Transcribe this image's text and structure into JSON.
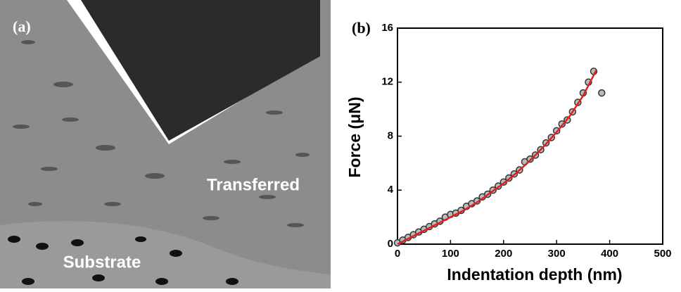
{
  "image": {
    "panel_label": "(a)",
    "top_label": "Transferred",
    "bottom_label": "Substrate"
  },
  "chart_data": {
    "type": "scatter",
    "panel_label": "(b)",
    "x_label": "Indentation depth (nm)",
    "y_label": "Force (μN)",
    "xlim": [
      0,
      500
    ],
    "xticks": [
      0,
      100,
      200,
      300,
      400,
      500
    ],
    "ylim": [
      0,
      16
    ],
    "yticks": [
      0,
      4,
      8,
      12,
      16
    ],
    "series": [
      {
        "style": "marker",
        "color": "#333333",
        "x": [
          0,
          10,
          20,
          30,
          40,
          50,
          60,
          70,
          80,
          90,
          100,
          110,
          120,
          130,
          140,
          150,
          160,
          170,
          180,
          190,
          200,
          210,
          220,
          230,
          240,
          250,
          260,
          270,
          280,
          290,
          300,
          310,
          320,
          330,
          340,
          350,
          360,
          370,
          385
        ],
        "values": [
          0.1,
          0.3,
          0.5,
          0.7,
          0.9,
          1.1,
          1.3,
          1.5,
          1.7,
          2.0,
          2.2,
          2.3,
          2.5,
          2.8,
          3.0,
          3.2,
          3.5,
          3.7,
          4.0,
          4.3,
          4.6,
          4.9,
          5.2,
          5.5,
          6.1,
          6.3,
          6.6,
          7.0,
          7.5,
          7.9,
          8.4,
          8.9,
          9.2,
          9.8,
          10.5,
          11.2,
          12.0,
          12.8,
          11.2
        ]
      },
      {
        "style": "line",
        "color": "#e02020",
        "x": [
          0,
          25,
          50,
          75,
          100,
          125,
          150,
          175,
          200,
          225,
          250,
          275,
          300,
          325,
          350,
          375
        ],
        "values": [
          0,
          0.5,
          1.0,
          1.5,
          2.0,
          2.5,
          3.1,
          3.8,
          4.5,
          5.3,
          6.2,
          7.2,
          8.3,
          9.5,
          11.0,
          12.9
        ]
      }
    ]
  }
}
